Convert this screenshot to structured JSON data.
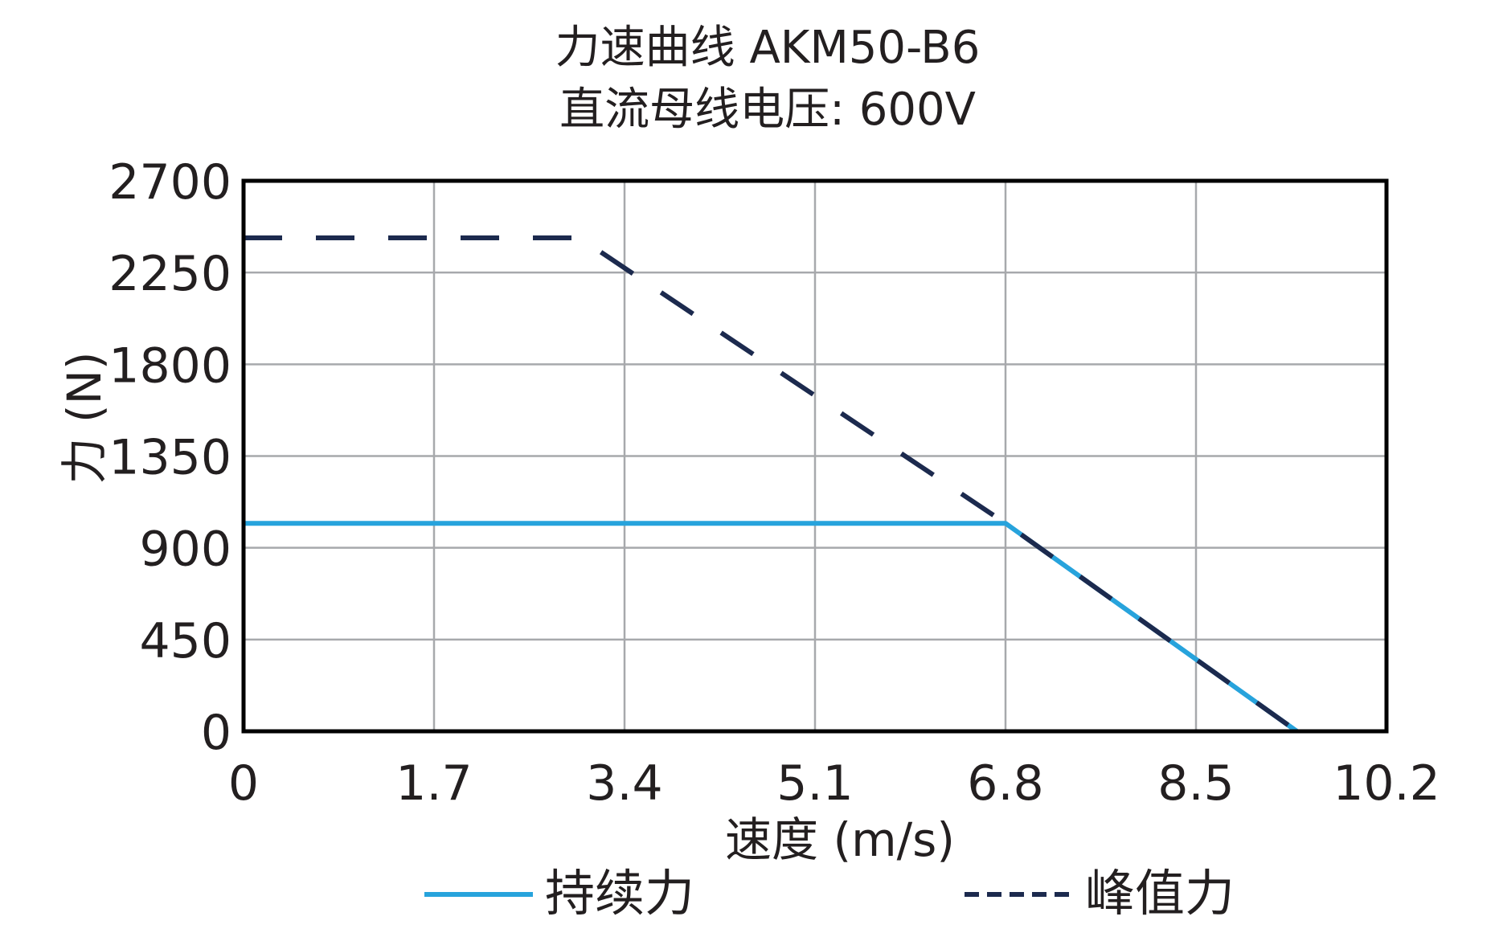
{
  "chart_data": {
    "type": "line",
    "title": "力速曲线 AKM50-B6",
    "subtitle": "直流母线电压: 600V",
    "xlabel": "速度 (m/s)",
    "ylabel": "力 (N)",
    "xlim": [
      0,
      10.2
    ],
    "ylim": [
      0,
      2700
    ],
    "x_ticks": [
      "0",
      "1.7",
      "3.4",
      "5.1",
      "6.8",
      "8.5",
      "10.2"
    ],
    "y_ticks": [
      "0",
      "450",
      "900",
      "1350",
      "1800",
      "2250",
      "2700"
    ],
    "grid": true,
    "legend_position": "bottom",
    "series": [
      {
        "name": "持续力",
        "style": "solid",
        "color": "#27a3dc",
        "x": [
          0,
          6.8,
          9.4
        ],
        "y": [
          1020,
          1020,
          0
        ]
      },
      {
        "name": "峰值力",
        "style": "dashed",
        "color": "#1c2a4e",
        "x": [
          0,
          3.0,
          6.8,
          9.4
        ],
        "y": [
          2420,
          2420,
          1020,
          0
        ]
      }
    ]
  }
}
